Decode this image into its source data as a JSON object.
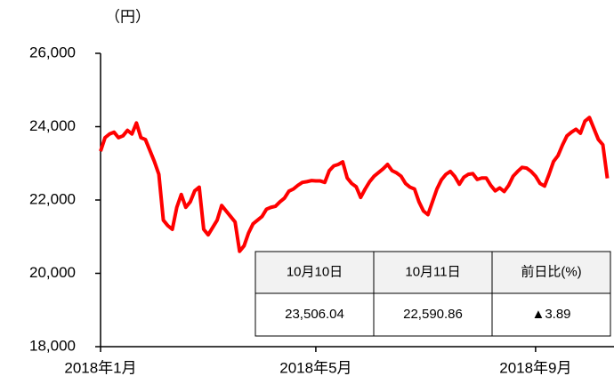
{
  "chart_data": {
    "type": "line",
    "unit_label": "（円）",
    "categories": [
      "2018年1月",
      null,
      null,
      null,
      null,
      null,
      null,
      null,
      null,
      null,
      null,
      null,
      null,
      null,
      null,
      null,
      null,
      null,
      null,
      null,
      null,
      null,
      null,
      null,
      null,
      null,
      null,
      null,
      null,
      null,
      null,
      null,
      null,
      null,
      null,
      null,
      null,
      null,
      null,
      null,
      null,
      null,
      null,
      null,
      null,
      null,
      null,
      null,
      "2018年5月",
      null,
      null,
      null,
      null,
      null,
      null,
      null,
      null,
      null,
      null,
      null,
      null,
      null,
      null,
      null,
      null,
      null,
      null,
      null,
      null,
      null,
      null,
      null,
      null,
      null,
      null,
      null,
      null,
      null,
      null,
      null,
      null,
      null,
      null,
      null,
      null,
      null,
      null,
      null,
      null,
      null,
      null,
      null,
      null,
      null,
      null,
      null,
      null,
      "2018年9月",
      null,
      null,
      null,
      null,
      null,
      null,
      null,
      null,
      null,
      null,
      null,
      null,
      null,
      null,
      null,
      null
    ],
    "series": [
      {
        "color": "#ff0000",
        "values": [
          23330,
          23700,
          23800,
          23850,
          23700,
          23750,
          23900,
          23800,
          24100,
          23700,
          23650,
          23350,
          23050,
          22700,
          21450,
          21300,
          21200,
          21800,
          22150,
          21800,
          21950,
          22250,
          22350,
          21200,
          21050,
          21250,
          21450,
          21850,
          21700,
          21550,
          21400,
          20600,
          20750,
          21100,
          21350,
          21450,
          21550,
          21750,
          21800,
          21830,
          21950,
          22050,
          22240,
          22300,
          22400,
          22480,
          22500,
          22530,
          22520,
          22520,
          22480,
          22800,
          22930,
          22970,
          23040,
          22600,
          22450,
          22360,
          22070,
          22300,
          22500,
          22650,
          22750,
          22850,
          22970,
          22800,
          22740,
          22650,
          22450,
          22350,
          22300,
          21950,
          21700,
          21600,
          21950,
          22300,
          22550,
          22700,
          22780,
          22640,
          22430,
          22620,
          22700,
          22720,
          22560,
          22600,
          22600,
          22400,
          22250,
          22330,
          22230,
          22400,
          22650,
          22780,
          22890,
          22870,
          22780,
          22650,
          22450,
          22380,
          22700,
          23050,
          23210,
          23500,
          23750,
          23850,
          23930,
          23820,
          24150,
          24250,
          23950,
          23650,
          23506.04,
          22590.86
        ]
      }
    ],
    "ylim": [
      18000,
      26000
    ],
    "yticks": [
      {
        "value": 18000,
        "label": "18,000"
      },
      {
        "value": 20000,
        "label": "20,000"
      },
      {
        "value": 22000,
        "label": "22,000"
      },
      {
        "value": 24000,
        "label": "24,000"
      },
      {
        "value": 26000,
        "label": "26,000"
      }
    ],
    "table": {
      "header": [
        "10月10日",
        "10月11日",
        "前日比(%)"
      ],
      "row": [
        "23,506.04",
        "22,590.86",
        "▲3.89"
      ]
    }
  }
}
